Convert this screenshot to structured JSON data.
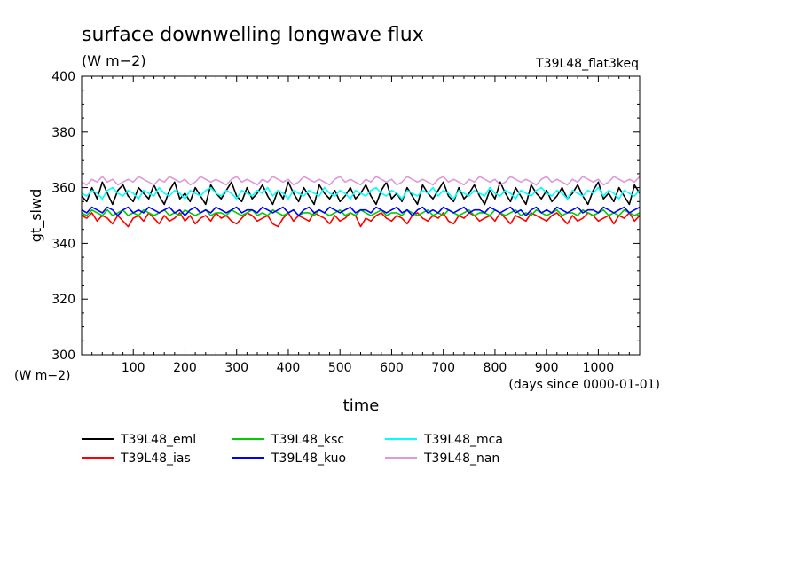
{
  "chart_data": {
    "type": "line",
    "title": "surface downwelling longwave flux",
    "units_label": "(W m−2)",
    "experiment_label": "T39L48_flat3keq",
    "ylabel": "gt_slwd",
    "ylabel_units": "(W m−2)",
    "xlabel": "time",
    "x_units": "(days since 0000-01-01)",
    "xlim": [
      0,
      1080
    ],
    "ylim": [
      300,
      400
    ],
    "x_ticks": [
      100,
      200,
      300,
      400,
      500,
      600,
      700,
      800,
      900,
      1000
    ],
    "y_ticks": [
      300,
      320,
      340,
      360,
      380,
      400
    ],
    "grid": false,
    "legend_position": "bottom",
    "series": [
      {
        "name": "T39L48_eml",
        "color": "#000000",
        "x_start": 0,
        "x_step": 10,
        "values": [
          357,
          355,
          360,
          356,
          362,
          358,
          354,
          359,
          361,
          357,
          355,
          360,
          358,
          356,
          361,
          357,
          354,
          359,
          362,
          356,
          358,
          355,
          360,
          357,
          354,
          361,
          358,
          356,
          359,
          362,
          357,
          355,
          360,
          356,
          358,
          361,
          357,
          354,
          359,
          356,
          362,
          358,
          355,
          360,
          357,
          354,
          361,
          358,
          356,
          359,
          355,
          357,
          360,
          356,
          358,
          361,
          357,
          354,
          359,
          362,
          356,
          358,
          355,
          360,
          357,
          354,
          361,
          358,
          356,
          359,
          362,
          357,
          355,
          360,
          356,
          358,
          361,
          357,
          354,
          359,
          356,
          362,
          358,
          355,
          360,
          357,
          354,
          361,
          358,
          356,
          359,
          355,
          357,
          360,
          356,
          358,
          361,
          357,
          354,
          359,
          362,
          356,
          358,
          355,
          360,
          357,
          354,
          361,
          358
        ]
      },
      {
        "name": "T39L48_ias",
        "color": "#ff0000",
        "x_start": 0,
        "x_step": 10,
        "values": [
          350,
          349,
          351,
          348,
          350,
          349,
          347,
          350,
          348,
          346,
          349,
          350,
          348,
          351,
          349,
          347,
          350,
          348,
          349,
          351,
          348,
          350,
          347,
          349,
          350,
          348,
          351,
          349,
          350,
          348,
          347,
          349,
          351,
          350,
          348,
          349,
          350,
          347,
          346,
          349,
          351,
          348,
          350,
          349,
          348,
          351,
          350,
          349,
          347,
          350,
          348,
          349,
          351,
          350,
          346,
          349,
          348,
          350,
          351,
          349,
          348,
          350,
          349,
          347,
          350,
          351,
          349,
          348,
          350,
          349,
          351,
          348,
          347,
          350,
          349,
          351,
          350,
          348,
          349,
          350,
          348,
          351,
          349,
          347,
          350,
          349,
          348,
          351,
          350,
          349,
          348,
          350,
          351,
          349,
          347,
          350,
          348,
          349,
          351,
          350,
          348,
          349,
          350,
          347,
          350,
          349,
          351,
          348,
          350
        ]
      },
      {
        "name": "T39L48_ksc",
        "color": "#00cc00",
        "x_start": 0,
        "x_step": 10,
        "values": [
          351,
          350,
          352,
          351,
          350,
          352,
          350,
          351,
          352,
          350,
          351,
          350,
          352,
          351,
          350,
          351,
          352,
          350,
          351,
          350,
          352,
          351,
          350,
          351,
          352,
          350,
          351,
          351,
          350,
          352,
          351,
          350,
          351,
          352,
          350,
          351,
          350,
          352,
          351,
          350,
          351,
          352,
          350,
          351,
          351,
          350,
          352,
          351,
          350,
          351,
          352,
          350,
          351,
          350,
          352,
          351,
          350,
          351,
          352,
          350,
          351,
          351,
          350,
          352,
          351,
          350,
          351,
          352,
          350,
          351,
          350,
          352,
          351,
          350,
          351,
          352,
          350,
          351,
          351,
          350,
          352,
          351,
          350,
          351,
          352,
          350,
          351,
          350,
          352,
          351,
          350,
          351,
          352,
          350,
          351,
          351,
          350,
          352,
          351,
          350,
          351,
          352,
          350,
          351,
          350,
          352,
          351,
          350,
          351
        ]
      },
      {
        "name": "T39L48_kuo",
        "color": "#0000ff",
        "x_start": 0,
        "x_step": 10,
        "values": [
          352,
          351,
          353,
          352,
          351,
          353,
          352,
          350,
          352,
          353,
          351,
          352,
          351,
          353,
          352,
          351,
          352,
          353,
          351,
          352,
          350,
          352,
          353,
          351,
          352,
          351,
          353,
          352,
          351,
          352,
          353,
          351,
          352,
          352,
          351,
          353,
          352,
          351,
          352,
          353,
          351,
          352,
          350,
          352,
          353,
          351,
          352,
          351,
          353,
          352,
          351,
          352,
          353,
          351,
          352,
          352,
          351,
          353,
          352,
          351,
          352,
          353,
          351,
          352,
          350,
          352,
          353,
          351,
          352,
          351,
          353,
          352,
          351,
          352,
          353,
          351,
          352,
          352,
          351,
          353,
          352,
          351,
          352,
          353,
          351,
          352,
          350,
          352,
          353,
          351,
          352,
          351,
          353,
          352,
          351,
          352,
          353,
          351,
          352,
          352,
          351,
          353,
          352,
          351,
          352,
          353,
          351,
          352,
          353
        ]
      },
      {
        "name": "T39L48_mca",
        "color": "#00ffff",
        "x_start": 0,
        "x_step": 10,
        "values": [
          358,
          357,
          359,
          358,
          356,
          359,
          360,
          358,
          357,
          359,
          358,
          356,
          359,
          358,
          357,
          360,
          358,
          357,
          359,
          358,
          356,
          359,
          358,
          357,
          359,
          360,
          358,
          357,
          359,
          358,
          356,
          359,
          358,
          357,
          359,
          358,
          360,
          357,
          359,
          358,
          356,
          359,
          358,
          357,
          359,
          358,
          357,
          360,
          358,
          357,
          359,
          358,
          356,
          359,
          358,
          357,
          359,
          360,
          358,
          357,
          359,
          358,
          356,
          359,
          358,
          357,
          359,
          358,
          360,
          357,
          359,
          358,
          356,
          359,
          358,
          357,
          359,
          358,
          357,
          360,
          358,
          357,
          359,
          358,
          356,
          359,
          358,
          357,
          359,
          360,
          358,
          357,
          359,
          358,
          356,
          359,
          358,
          357,
          359,
          358,
          360,
          357,
          359,
          358,
          356,
          359,
          358,
          357,
          359
        ]
      },
      {
        "name": "T39L48_nan",
        "color": "#dd99dd",
        "x_start": 0,
        "x_step": 10,
        "values": [
          362,
          361,
          363,
          362,
          364,
          362,
          363,
          361,
          362,
          363,
          362,
          364,
          363,
          362,
          361,
          363,
          362,
          364,
          363,
          362,
          363,
          361,
          362,
          364,
          363,
          362,
          363,
          362,
          361,
          363,
          364,
          362,
          363,
          362,
          361,
          363,
          362,
          364,
          363,
          362,
          363,
          361,
          362,
          364,
          363,
          362,
          363,
          362,
          361,
          363,
          364,
          362,
          363,
          362,
          361,
          363,
          362,
          364,
          363,
          362,
          363,
          361,
          362,
          364,
          363,
          362,
          363,
          362,
          361,
          363,
          364,
          362,
          363,
          362,
          361,
          363,
          362,
          364,
          363,
          362,
          363,
          361,
          362,
          364,
          363,
          362,
          363,
          362,
          361,
          363,
          364,
          362,
          363,
          362,
          361,
          363,
          362,
          364,
          363,
          362,
          363,
          361,
          362,
          364,
          363,
          362,
          363,
          362,
          364
        ]
      }
    ]
  }
}
